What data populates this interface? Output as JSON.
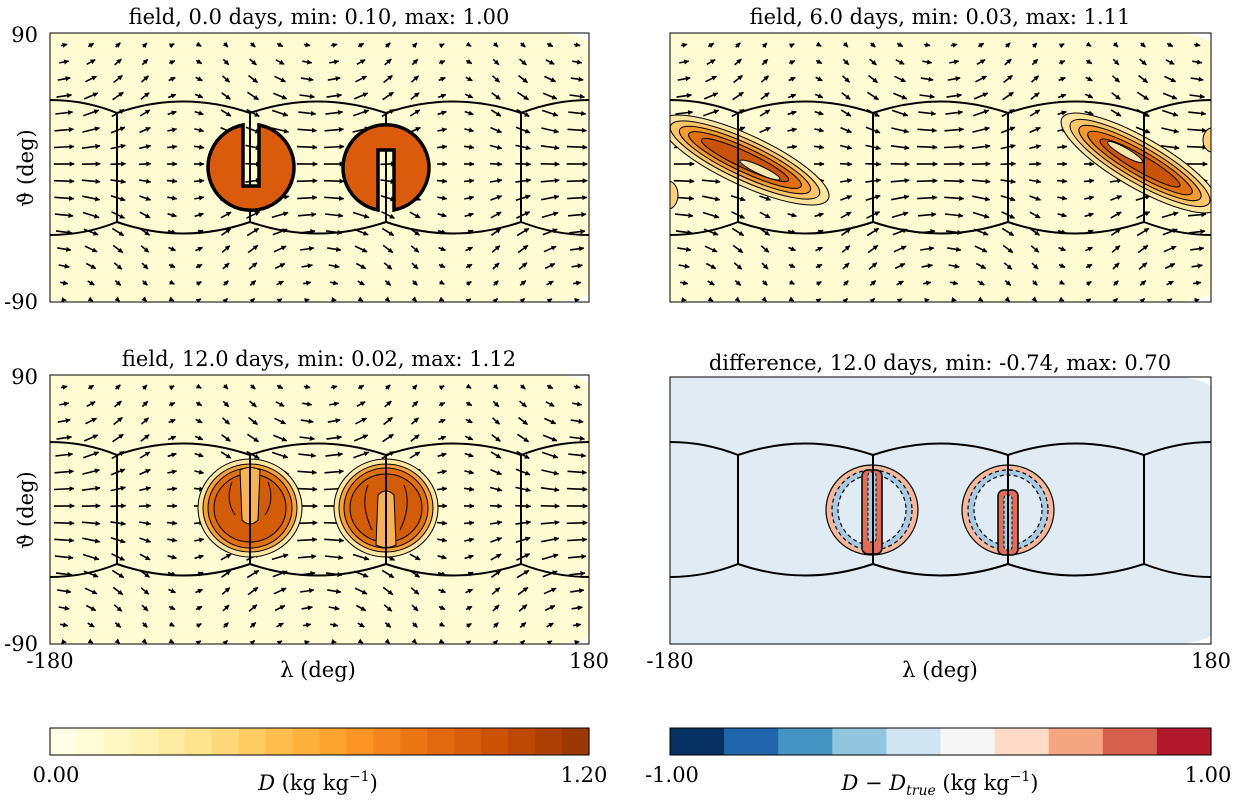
{
  "chart_data": [
    {
      "type": "heatmap",
      "panel": "top-left",
      "title": "field, 0.0 days, min: 0.10, max: 1.00",
      "xlim": [
        -180,
        180
      ],
      "ylim": [
        -90,
        90
      ],
      "ylabel": "ϑ (deg)",
      "yticks": [
        "90",
        "-90"
      ],
      "colormap": "YlOrBr",
      "features": [
        {
          "kind": "slotted-cylinder",
          "center": [
            -65,
            0
          ],
          "orientation": "slot-up"
        },
        {
          "kind": "slotted-cylinder",
          "center": [
            25,
            0
          ],
          "orientation": "slot-down"
        }
      ],
      "wind_vectors": true
    },
    {
      "type": "heatmap",
      "panel": "top-right",
      "title": "field, 6.0 days, min: 0.03, max: 1.11",
      "xlim": [
        -180,
        180
      ],
      "ylim": [
        -90,
        90
      ],
      "colormap": "YlOrBr",
      "features": [
        {
          "kind": "stretched-filament",
          "center": [
            -135,
            10
          ]
        },
        {
          "kind": "stretched-filament",
          "center": [
            120,
            10
          ]
        }
      ],
      "wind_vectors": true
    },
    {
      "type": "heatmap",
      "panel": "bottom-left",
      "title": "field, 12.0 days, min: 0.02, max: 1.12",
      "xlim": [
        -180,
        180
      ],
      "ylim": [
        -90,
        90
      ],
      "xlabel": "λ (deg)",
      "ylabel": "ϑ (deg)",
      "xticks": [
        "-180",
        "180"
      ],
      "yticks": [
        "90",
        "-90"
      ],
      "colormap": "YlOrBr",
      "features": [
        {
          "kind": "recovered-cylinder",
          "center": [
            -65,
            0
          ]
        },
        {
          "kind": "recovered-cylinder",
          "center": [
            25,
            0
          ]
        }
      ],
      "wind_vectors": true
    },
    {
      "type": "heatmap",
      "panel": "bottom-right",
      "title": "difference, 12.0 days, min: -0.74, max: 0.70",
      "xlim": [
        -180,
        180
      ],
      "xlabel": "λ (deg)",
      "xticks": [
        "-180",
        "180"
      ],
      "colormap": "RdBu_r",
      "features": [
        {
          "kind": "error-ring",
          "center": [
            -65,
            0
          ]
        },
        {
          "kind": "error-ring",
          "center": [
            25,
            0
          ]
        }
      ]
    }
  ],
  "colorbars": [
    {
      "label_main": "D",
      "label_unit": " (kg kg",
      "label_exp": "−1",
      "label_close": ")",
      "min_label": "0.00",
      "max_label": "1.20",
      "min": 0,
      "max": 1.2,
      "levels": 20,
      "colors": [
        "#fffee5",
        "#fffcd6",
        "#fff8c5",
        "#fff3b4",
        "#feeca2",
        "#fee38f",
        "#fed879",
        "#fecc62",
        "#febe4d",
        "#feb13c",
        "#fea32f",
        "#fc9526",
        "#f5851d",
        "#ec7616",
        "#e26910",
        "#d85d0a",
        "#cc5206",
        "#bd4804",
        "#ad3f03",
        "#9c3803"
      ]
    },
    {
      "label_main": "D − D",
      "label_sub": "true",
      "label_unit": " (kg kg",
      "label_exp": "−1",
      "label_close": ")",
      "min_label": "-1.00",
      "max_label": "1.00",
      "min": -1,
      "max": 1,
      "levels": 10,
      "colors": [
        "#053061",
        "#2166ac",
        "#4393c3",
        "#92c5de",
        "#d1e5f0",
        "#f7f7f7",
        "#fddbc7",
        "#f4a582",
        "#d6604d",
        "#b2182b"
      ]
    }
  ],
  "colors": {
    "field_background": "#fffbd2",
    "difference_background": "#e0ebf3",
    "anomaly_orange": "#d95b0b",
    "diff_positive": "#e06d55",
    "diff_positive_light": "#f7b79a",
    "diff_negative": "#a8cbe3"
  }
}
